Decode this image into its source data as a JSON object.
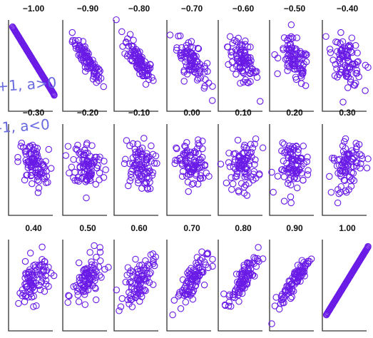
{
  "colors": {
    "points": "#6a1be6",
    "axes": "#333333",
    "ink": "#6a6ae0",
    "title": "#111111"
  },
  "annotations": [
    "+1, a>0",
    "-1, a<0"
  ],
  "chart_data": [
    {
      "type": "scatter",
      "title": "−1.00",
      "r": -1.0,
      "n": 90
    },
    {
      "type": "scatter",
      "title": "−0.90",
      "r": -0.9,
      "n": 90
    },
    {
      "type": "scatter",
      "title": "−0.80",
      "r": -0.8,
      "n": 90
    },
    {
      "type": "scatter",
      "title": "−0.70",
      "r": -0.7,
      "n": 90
    },
    {
      "type": "scatter",
      "title": "−0.60",
      "r": -0.6,
      "n": 90
    },
    {
      "type": "scatter",
      "title": "−0.50",
      "r": -0.5,
      "n": 90
    },
    {
      "type": "scatter",
      "title": "−0.40",
      "r": -0.4,
      "n": 90
    },
    {
      "type": "scatter",
      "title": "−0.30",
      "r": -0.3,
      "n": 90
    },
    {
      "type": "scatter",
      "title": "−0.20",
      "r": -0.2,
      "n": 90
    },
    {
      "type": "scatter",
      "title": "−0.10",
      "r": -0.1,
      "n": 90
    },
    {
      "type": "scatter",
      "title": "0.00",
      "r": 0.0,
      "n": 90
    },
    {
      "type": "scatter",
      "title": "0.10",
      "r": 0.1,
      "n": 90
    },
    {
      "type": "scatter",
      "title": "0.20",
      "r": 0.2,
      "n": 90
    },
    {
      "type": "scatter",
      "title": "0.30",
      "r": 0.3,
      "n": 90
    },
    {
      "type": "scatter",
      "title": "0.40",
      "r": 0.4,
      "n": 90
    },
    {
      "type": "scatter",
      "title": "0.50",
      "r": 0.5,
      "n": 90
    },
    {
      "type": "scatter",
      "title": "0.60",
      "r": 0.6,
      "n": 90
    },
    {
      "type": "scatter",
      "title": "0.70",
      "r": 0.7,
      "n": 90
    },
    {
      "type": "scatter",
      "title": "0.80",
      "r": 0.8,
      "n": 90
    },
    {
      "type": "scatter",
      "title": "0.90",
      "r": 0.9,
      "n": 90
    },
    {
      "type": "scatter",
      "title": "1.00",
      "r": 1.0,
      "n": 90
    }
  ]
}
